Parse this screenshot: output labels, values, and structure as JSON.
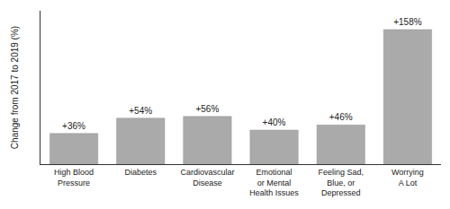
{
  "chart_data": {
    "type": "bar",
    "categories": [
      "High Blood\nPressure",
      "Diabetes",
      "Cardiovascular\nDisease",
      "Emotional\nor Mental\nHealth Issues",
      "Feeling Sad,\nBlue, or\nDepressed",
      "Worrying\nA Lot"
    ],
    "values": [
      36,
      54,
      56,
      40,
      46,
      158
    ],
    "value_labels": [
      "+36%",
      "+54%",
      "+56%",
      "+40%",
      "+46%",
      "+158%"
    ],
    "data_labels": true,
    "color": "#aaaaaa",
    "ylabel": "Change from 2017 to 2019 (%)",
    "ylim": [
      0,
      180
    ],
    "yticks": [],
    "tick_labels": "x",
    "grid": false
  }
}
